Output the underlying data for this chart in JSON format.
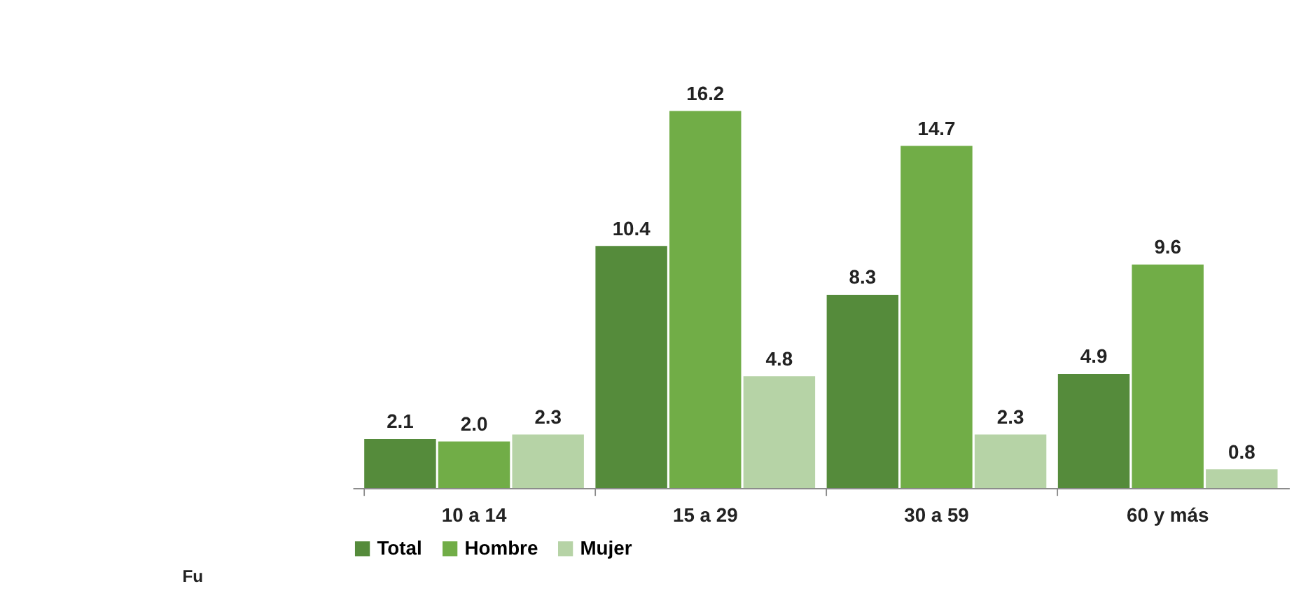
{
  "chart_data": {
    "type": "bar",
    "categories": [
      "10 a 14",
      "15 a 29",
      "30 a 59",
      "60 y más"
    ],
    "series": [
      {
        "name": "Total",
        "color": "#558b3b",
        "values": [
          2.1,
          10.4,
          8.3,
          4.9
        ],
        "value_labels": [
          "2.1",
          "10.4",
          "8.3",
          "4.9"
        ]
      },
      {
        "name": "Hombre",
        "color": "#71ad47",
        "values": [
          2.0,
          16.2,
          14.7,
          9.6
        ],
        "value_labels": [
          "2.0",
          "16.2",
          "14.7",
          "9.6"
        ]
      },
      {
        "name": "Mujer",
        "color": "#b6d3a6",
        "values": [
          2.3,
          4.8,
          2.3,
          0.8
        ],
        "value_labels": [
          "2.3",
          "4.8",
          "2.3",
          "0.8"
        ]
      }
    ],
    "legend": "bottom",
    "grid": false,
    "annotations": [
      "Fu"
    ]
  }
}
